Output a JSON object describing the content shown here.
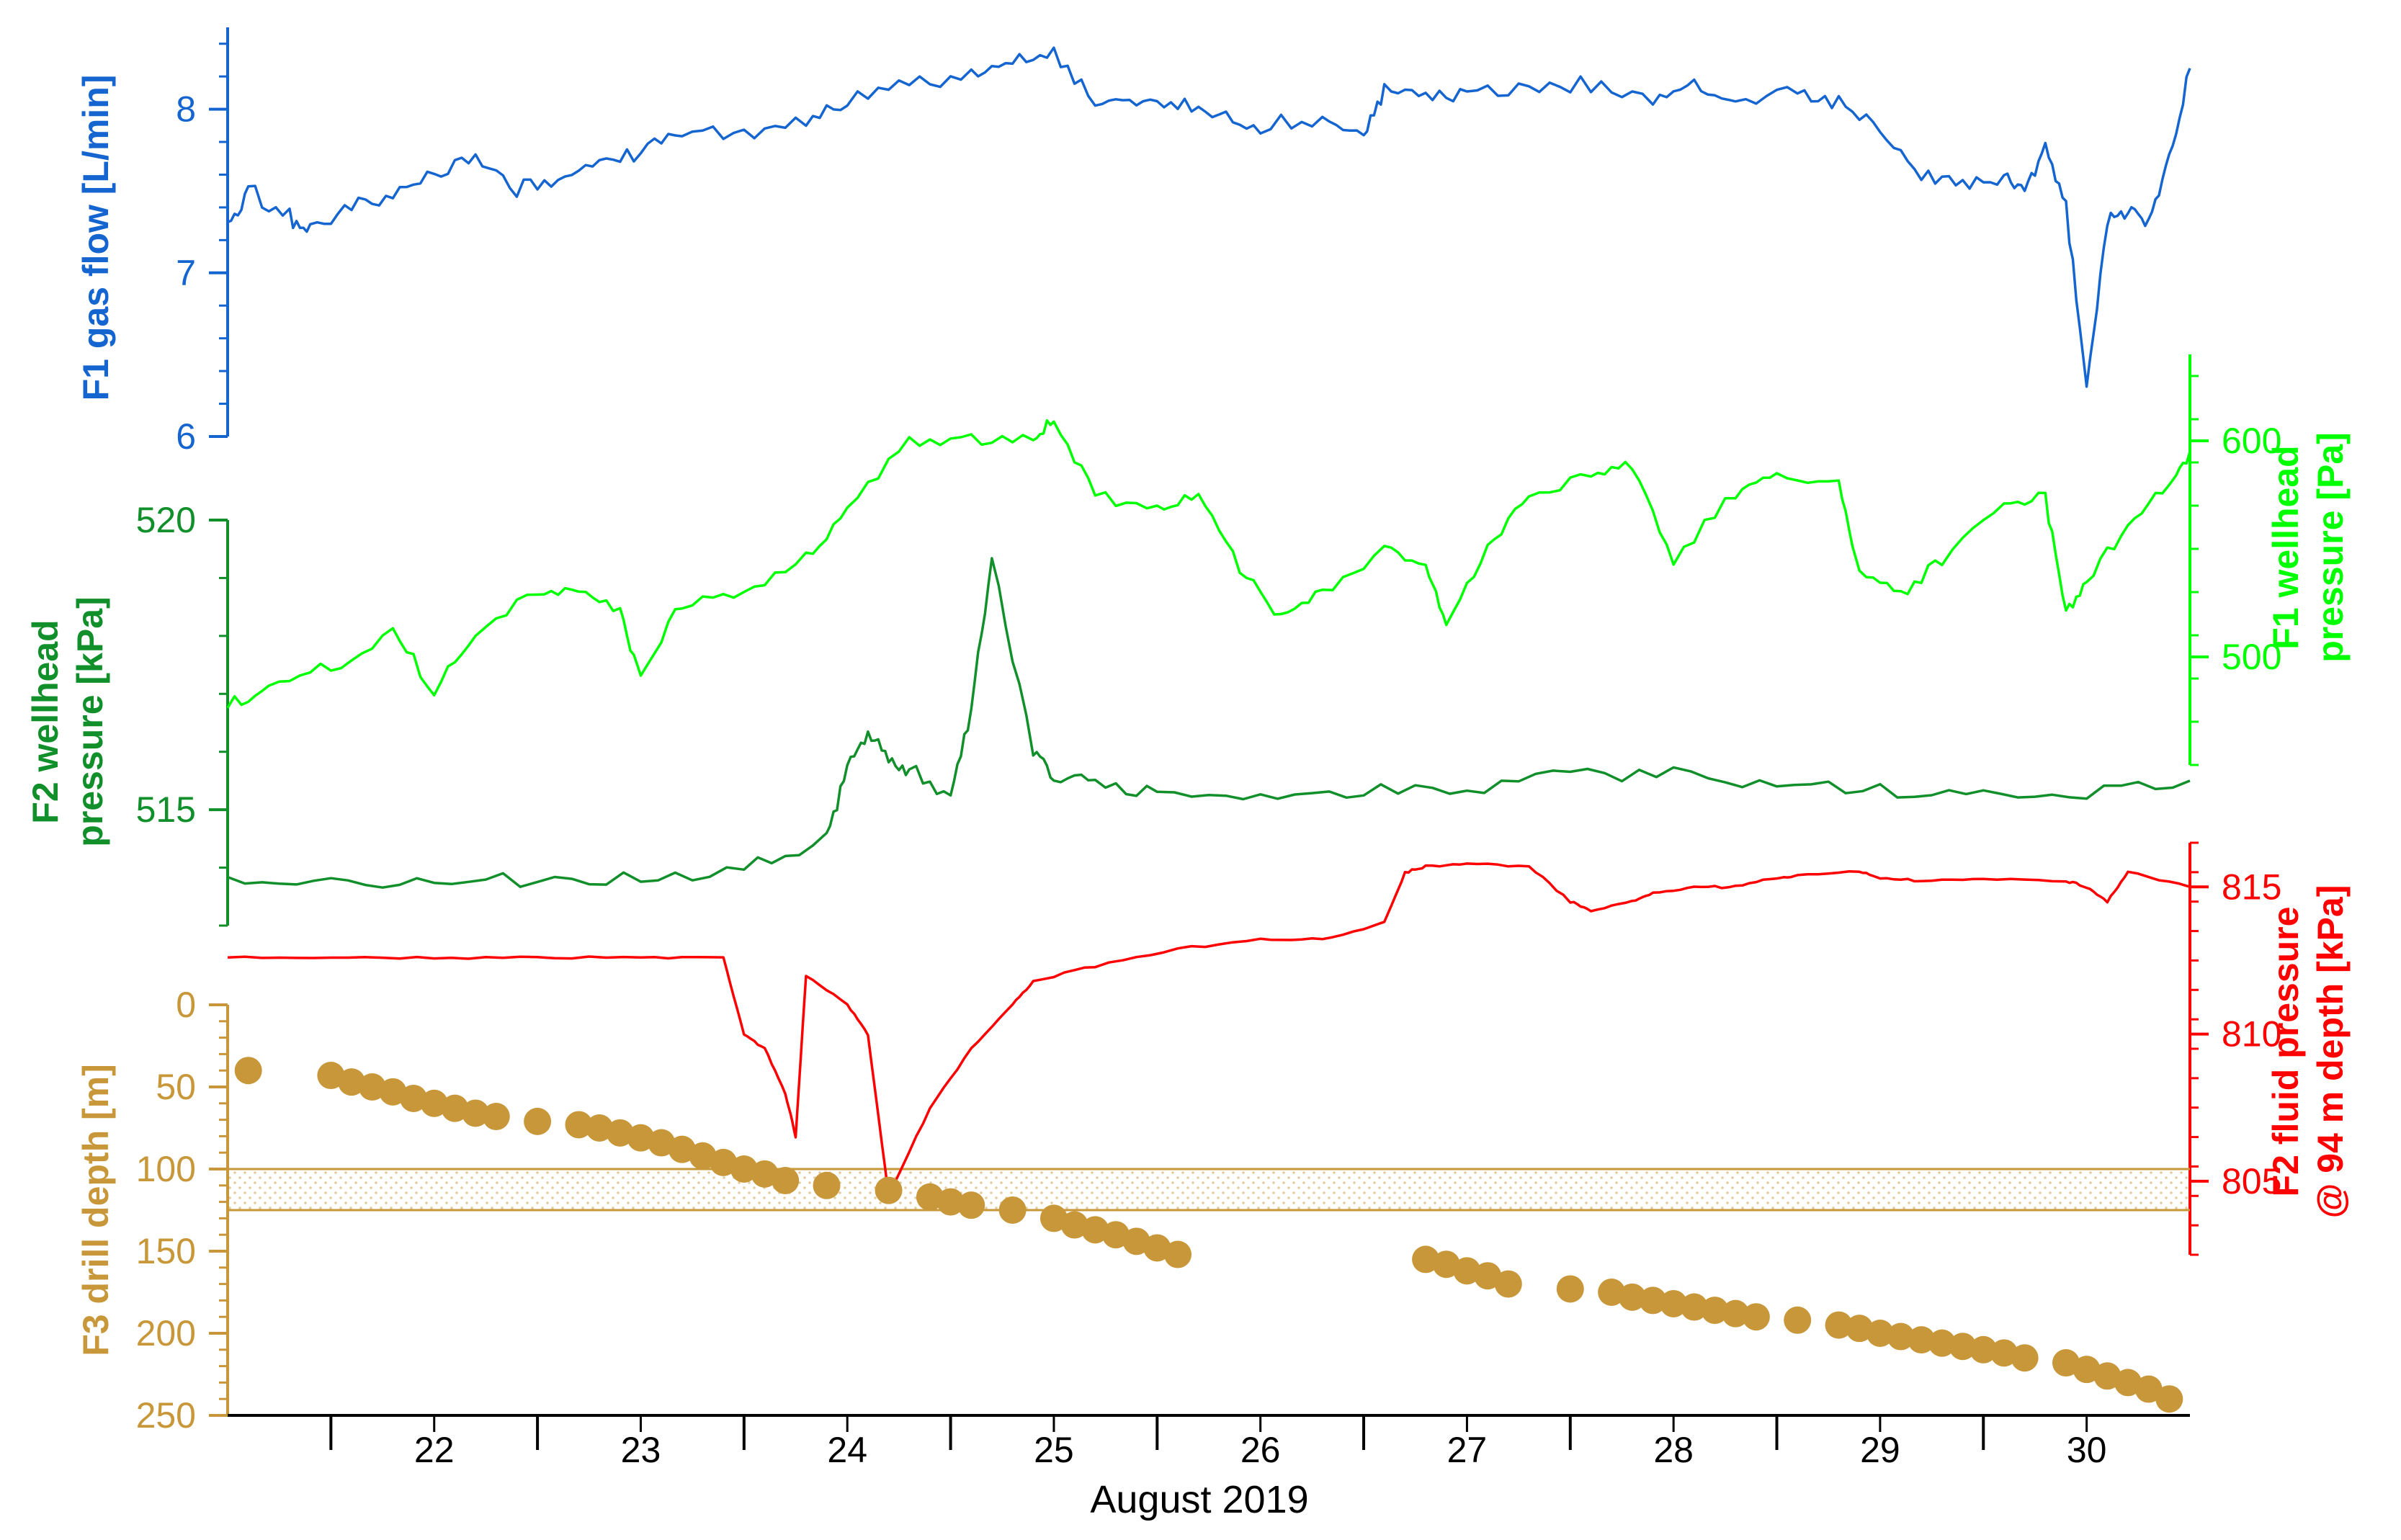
{
  "colors": {
    "flow": "#1565d0",
    "f1pressure": "#00ff00",
    "f2pressure": "#118f2a",
    "fluid": "#ff0000",
    "depth": "#c8973a"
  },
  "chart_data": {
    "type": "line",
    "x_unit": "day of August 2019",
    "xlim": [
      21.0,
      30.5
    ],
    "xlabel": "August 2019",
    "xtick_labels": [
      "22",
      "23",
      "24",
      "25",
      "26",
      "27",
      "28",
      "29",
      "30"
    ],
    "xticks_at": [
      21.5,
      22.5,
      23.5,
      24.5,
      25.5,
      26.5,
      27.5,
      28.5,
      29.5
    ],
    "panels": {
      "flow": {
        "ylabel": "F1 gas flow [L/min]",
        "ylim": [
          6,
          8.5
        ],
        "yticks": [
          "6",
          "7",
          "8"
        ],
        "yticks_at": [
          6,
          7,
          8
        ],
        "x": [
          21.0,
          21.1,
          21.3,
          21.4,
          21.6,
          21.8,
          22.0,
          22.2,
          22.4,
          22.6,
          22.8,
          23.0,
          23.2,
          23.5,
          23.8,
          24.0,
          24.3,
          24.6,
          24.8,
          25.0,
          25.2,
          25.4,
          25.6,
          25.8,
          26.0,
          26.3,
          26.5,
          26.6,
          26.8,
          27.0,
          27.3,
          27.6,
          27.9,
          28.1,
          28.3,
          28.6,
          28.8,
          29.0,
          29.2,
          29.4,
          29.6,
          29.7,
          29.8,
          29.9,
          30.0,
          30.1,
          30.2,
          30.3,
          30.4,
          30.5
        ],
        "y": [
          7.3,
          7.5,
          7.35,
          7.25,
          7.4,
          7.45,
          7.6,
          7.7,
          7.5,
          7.6,
          7.65,
          7.75,
          7.85,
          7.85,
          7.95,
          8.05,
          8.15,
          8.2,
          8.3,
          8.35,
          8.05,
          8.05,
          8.05,
          7.95,
          7.9,
          7.95,
          7.85,
          8.1,
          8.1,
          8.1,
          8.15,
          8.15,
          8.05,
          8.15,
          8.05,
          8.1,
          8.05,
          7.85,
          7.6,
          7.55,
          7.6,
          7.5,
          7.8,
          7.4,
          6.3,
          7.3,
          7.4,
          7.3,
          7.7,
          8.25
        ]
      },
      "f1_wellhead": {
        "ylabel": "F1 wellhead pressure [Pa]",
        "ylim": [
          450,
          640
        ],
        "yticks": [
          "500",
          "600"
        ],
        "yticks_at": [
          500,
          600
        ],
        "x": [
          21.0,
          21.2,
          21.5,
          21.8,
          22.0,
          22.2,
          22.5,
          22.7,
          22.9,
          23.0,
          23.2,
          23.5,
          23.8,
          24.0,
          24.3,
          24.6,
          24.9,
          25.0,
          25.2,
          25.5,
          25.7,
          25.9,
          26.1,
          26.3,
          26.6,
          26.8,
          26.9,
          27.1,
          27.3,
          27.6,
          27.8,
          28.0,
          28.3,
          28.5,
          28.8,
          28.9,
          29.1,
          29.3,
          29.6,
          29.8,
          29.9,
          30.0,
          30.2,
          30.4,
          30.5
        ],
        "y": [
          478,
          485,
          495,
          510,
          485,
          510,
          530,
          530,
          522,
          490,
          525,
          530,
          545,
          570,
          600,
          600,
          600,
          610,
          575,
          570,
          575,
          540,
          520,
          530,
          550,
          542,
          515,
          550,
          575,
          585,
          590,
          545,
          575,
          585,
          580,
          540,
          530,
          545,
          570,
          575,
          520,
          535,
          560,
          580,
          595
        ]
      },
      "f2_wellhead": {
        "ylabel": "F2 wellhead pressure [kPa]",
        "ylim": [
          513.0,
          520.0
        ],
        "yticks": [
          "515",
          "520"
        ],
        "yticks_at": [
          515,
          520
        ],
        "x": [
          21.0,
          21.5,
          22.0,
          22.5,
          23.0,
          23.5,
          23.9,
          24.0,
          24.1,
          24.2,
          24.3,
          24.5,
          24.6,
          24.7,
          24.9,
          25.0,
          25.2,
          25.5,
          26.0,
          26.5,
          27.0,
          27.5,
          28.0,
          28.5,
          29.0,
          29.5,
          30.0,
          30.5
        ],
        "y": [
          513.7,
          513.7,
          513.8,
          513.8,
          513.8,
          514.0,
          514.5,
          515.7,
          516.4,
          515.8,
          515.7,
          515.2,
          516.8,
          519.3,
          516.0,
          515.6,
          515.4,
          515.3,
          515.3,
          515.3,
          515.4,
          515.6,
          515.6,
          515.4,
          515.3,
          515.2,
          515.3,
          515.5
        ]
      },
      "f2_fluid": {
        "ylabel": "F2 fluid pressure @ 94 m depth [kPa]",
        "ylim": [
          802.5,
          816.5
        ],
        "yticks": [
          "805",
          "810",
          "815"
        ],
        "yticks_at": [
          805,
          810,
          815
        ],
        "x": [
          21.0,
          21.5,
          22.0,
          22.5,
          23.0,
          23.4,
          23.5,
          23.6,
          23.7,
          23.75,
          23.8,
          24.0,
          24.1,
          24.2,
          24.4,
          24.6,
          24.8,
          24.9,
          25.2,
          25.6,
          26.0,
          26.3,
          26.6,
          26.7,
          26.8,
          27.0,
          27.3,
          27.5,
          27.6,
          27.8,
          27.9,
          28.1,
          28.3,
          28.5,
          28.6,
          28.9,
          29.0,
          29.2,
          29.5,
          29.9,
          30.0,
          30.1,
          30.2,
          30.5
        ],
        "y": [
          812.6,
          812.6,
          812.6,
          812.6,
          812.6,
          812.6,
          810.0,
          809.5,
          808.0,
          806.5,
          812.0,
          811.0,
          810.0,
          804.5,
          807.5,
          809.5,
          811.0,
          811.8,
          812.3,
          812.9,
          813.2,
          813.2,
          813.8,
          815.5,
          815.7,
          815.8,
          815.7,
          814.5,
          814.2,
          814.5,
          814.8,
          815.0,
          815.0,
          815.3,
          815.4,
          815.5,
          815.3,
          815.2,
          815.3,
          815.2,
          815.0,
          814.5,
          815.5,
          815.0
        ]
      },
      "f3_depth": {
        "ylabel": "F3 drill depth [m]",
        "ylim": [
          0,
          250
        ],
        "yticks": [
          "0",
          "50",
          "100",
          "150",
          "200",
          "250"
        ],
        "yticks_at": [
          0,
          50,
          100,
          150,
          200,
          250
        ],
        "shaded_band": [
          100,
          125
        ],
        "x": [
          21.1,
          21.5,
          21.6,
          21.7,
          21.8,
          21.9,
          22.0,
          22.1,
          22.2,
          22.3,
          22.5,
          22.7,
          22.8,
          22.9,
          23.0,
          23.1,
          23.2,
          23.3,
          23.4,
          23.5,
          23.6,
          23.7,
          23.9,
          24.2,
          24.4,
          24.5,
          24.6,
          24.8,
          25.0,
          25.1,
          25.2,
          25.3,
          25.4,
          25.5,
          25.6,
          26.8,
          26.9,
          27.0,
          27.1,
          27.2,
          27.5,
          27.7,
          27.8,
          27.9,
          28.0,
          28.1,
          28.2,
          28.3,
          28.4,
          28.6,
          28.8,
          28.9,
          29.0,
          29.1,
          29.2,
          29.3,
          29.4,
          29.5,
          29.6,
          29.7,
          29.9,
          30.0,
          30.1,
          30.2,
          30.3,
          30.4
        ],
        "y": [
          40,
          43,
          47,
          50,
          53,
          57,
          60,
          63,
          66,
          68,
          71,
          73,
          75,
          78,
          81,
          84,
          88,
          92,
          96,
          100,
          103,
          107,
          110,
          113,
          117,
          120,
          122,
          125,
          130,
          134,
          137,
          140,
          144,
          148,
          152,
          155,
          158,
          162,
          165,
          170,
          173,
          175,
          178,
          180,
          182,
          184,
          186,
          188,
          190,
          192,
          195,
          197,
          200,
          202,
          204,
          206,
          208,
          210,
          212,
          215,
          218,
          222,
          226,
          230,
          234,
          240
        ]
      }
    }
  }
}
